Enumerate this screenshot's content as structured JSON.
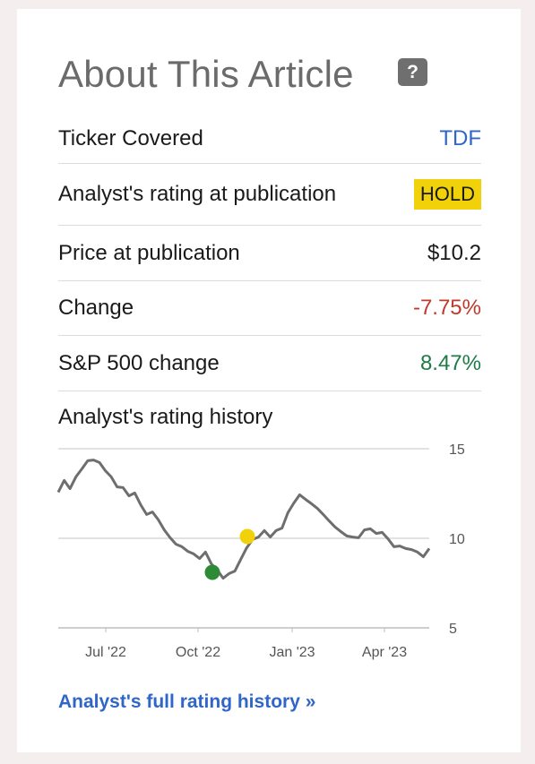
{
  "card": {
    "title": "About This Article",
    "help_label": "?"
  },
  "rows": [
    {
      "label": "Ticker Covered",
      "value": "TDF"
    },
    {
      "label": "Analyst's rating at publication",
      "value": "HOLD"
    },
    {
      "label": "Price at publication",
      "value": "$10.2"
    },
    {
      "label": "Change",
      "value": "-7.75%"
    },
    {
      "label": "S&P 500 change",
      "value": "8.47%"
    }
  ],
  "history_label": "Analyst's rating history",
  "full_history_link": "Analyst's full rating history »",
  "colors": {
    "link": "#2f66c7",
    "hold_badge": "#f0d10a",
    "negative": "#c0392b",
    "positive": "#1f7a45",
    "line": "#6e6e6e",
    "buy_marker": "#2e8b35",
    "hold_marker": "#f0d10a"
  },
  "chart_data": {
    "type": "line",
    "x_ticks": [
      "Jul '22",
      "Oct '22",
      "Jan '23",
      "Apr '23"
    ],
    "y_ticks": [
      "15",
      "10",
      "5"
    ],
    "ylim": [
      5,
      15
    ],
    "grid": true,
    "series": [
      {
        "values": [
          12.6,
          13.2,
          12.8,
          13.4,
          13.9,
          14.3,
          14.4,
          14.2,
          13.8,
          13.4,
          12.9,
          12.8,
          12.4,
          12.5,
          11.9,
          11.3,
          11.5,
          11.0,
          10.5,
          10.0,
          9.7,
          9.5,
          9.3,
          9.1,
          8.9,
          9.2,
          8.6,
          8.2,
          7.8,
          8.0,
          8.2,
          8.8,
          9.5,
          9.9,
          10.1,
          10.4,
          10.1,
          10.4,
          10.6,
          11.4,
          12.0,
          12.4,
          12.2,
          11.9,
          11.7,
          11.3,
          11.0,
          10.6,
          10.4,
          10.1,
          10.1,
          10.0,
          10.5,
          10.5,
          10.3,
          10.3,
          10.0,
          9.5,
          9.6,
          9.4,
          9.4,
          9.2,
          9.0,
          9.4
        ]
      }
    ],
    "markers": [
      {
        "rating": "buy",
        "value": 8.1
      },
      {
        "rating": "hold",
        "value": 10.1
      }
    ]
  }
}
